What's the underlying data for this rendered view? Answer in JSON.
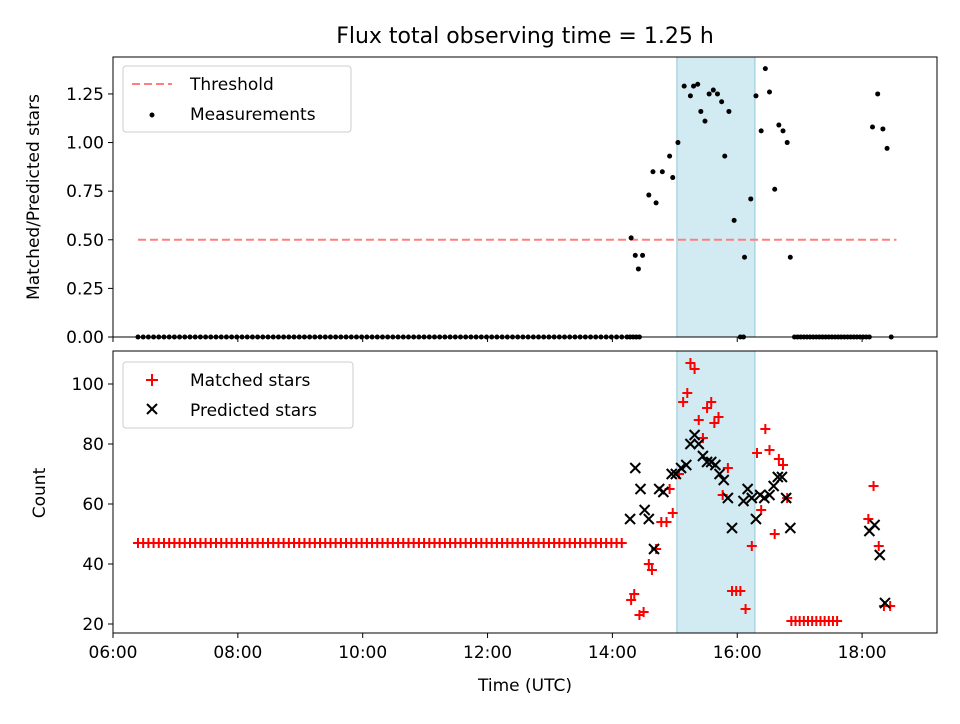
{
  "chart_data": [
    {
      "type": "scatter",
      "title": "Flux total observing time = 1.25 h",
      "ylabel": "Matched/Predicted stars",
      "xlabel": "",
      "xlim": [
        "06:00",
        "19:12"
      ],
      "ylim": [
        0,
        1.44
      ],
      "yticks": [
        "0.00",
        "0.25",
        "0.50",
        "0.75",
        "1.00",
        "1.25"
      ],
      "ytick_values": [
        0,
        0.25,
        0.5,
        0.75,
        1.0,
        1.25
      ],
      "shaded_span": {
        "start": "15:02",
        "end": "16:17",
        "color": "#add8e6"
      },
      "legend_position": "upper left",
      "threshold": {
        "name": "Threshold",
        "value": 0.5,
        "x_start": "06:24",
        "x_end": "18:33",
        "color": "#ff7f7f",
        "style": "dashed"
      },
      "series": [
        {
          "name": "Measurements",
          "color": "#000000",
          "marker": "dot",
          "zero_run": {
            "from": "06:24",
            "to": "14:15",
            "step_minutes": 5,
            "value": 0
          },
          "points": [
            [
              "14:17",
              0
            ],
            [
              "14:20",
              0
            ],
            [
              "14:23",
              0
            ],
            [
              "14:26",
              0
            ],
            [
              "14:18",
              0.51
            ],
            [
              "14:22",
              0.42
            ],
            [
              "14:25",
              0.35
            ],
            [
              "14:29",
              0.42
            ],
            [
              "14:35",
              0.73
            ],
            [
              "14:39",
              0.85
            ],
            [
              "14:42",
              0.69
            ],
            [
              "14:48",
              0.85
            ],
            [
              "14:55",
              0.93
            ],
            [
              "14:58",
              0.82
            ],
            [
              "15:03",
              1.0
            ],
            [
              "15:09",
              1.29
            ],
            [
              "15:15",
              1.24
            ],
            [
              "15:18",
              1.29
            ],
            [
              "15:22",
              1.3
            ],
            [
              "15:25",
              1.16
            ],
            [
              "15:29",
              1.11
            ],
            [
              "15:33",
              1.25
            ],
            [
              "15:37",
              1.27
            ],
            [
              "15:41",
              1.25
            ],
            [
              "15:45",
              1.21
            ],
            [
              "15:48",
              0.93
            ],
            [
              "15:52",
              1.16
            ],
            [
              "15:57",
              0.6
            ],
            [
              "16:03",
              0
            ],
            [
              "16:06",
              0
            ],
            [
              "16:07",
              0.41
            ],
            [
              "16:13",
              0.71
            ],
            [
              "16:18",
              1.24
            ],
            [
              "16:23",
              1.06
            ],
            [
              "16:27",
              1.38
            ],
            [
              "16:31",
              1.26
            ],
            [
              "16:36",
              0.76
            ],
            [
              "16:40",
              1.09
            ],
            [
              "16:44",
              1.06
            ],
            [
              "16:48",
              1.0
            ],
            [
              "16:51",
              0.41
            ],
            [
              "16:55",
              0
            ],
            [
              "16:58",
              0
            ],
            [
              "17:01",
              0
            ],
            [
              "17:04",
              0
            ],
            [
              "17:07",
              0
            ],
            [
              "17:10",
              0
            ],
            [
              "17:13",
              0
            ],
            [
              "17:16",
              0
            ],
            [
              "17:19",
              0
            ],
            [
              "17:22",
              0
            ],
            [
              "17:25",
              0
            ],
            [
              "17:28",
              0
            ],
            [
              "17:31",
              0
            ],
            [
              "17:34",
              0
            ],
            [
              "17:37",
              0
            ],
            [
              "17:40",
              0
            ],
            [
              "17:43",
              0
            ],
            [
              "17:46",
              0
            ],
            [
              "17:49",
              0
            ],
            [
              "17:52",
              0
            ],
            [
              "17:55",
              0
            ],
            [
              "17:58",
              0
            ],
            [
              "18:01",
              0
            ],
            [
              "18:04",
              0
            ],
            [
              "18:07",
              0
            ],
            [
              "18:10",
              1.08
            ],
            [
              "18:15",
              1.25
            ],
            [
              "18:20",
              1.07
            ],
            [
              "18:24",
              0.97
            ],
            [
              "18:28",
              0
            ]
          ]
        }
      ]
    },
    {
      "type": "scatter",
      "title": "",
      "xlabel": "Time (UTC)",
      "ylabel": "Count",
      "xlim": [
        "06:00",
        "19:12"
      ],
      "ylim": [
        17,
        111
      ],
      "xticks": [
        "06:00",
        "08:00",
        "10:00",
        "12:00",
        "14:00",
        "16:00",
        "18:00"
      ],
      "yticks": [
        "20",
        "40",
        "60",
        "80",
        "100"
      ],
      "ytick_values": [
        20,
        40,
        60,
        80,
        100
      ],
      "shaded_span": {
        "start": "15:02",
        "end": "16:17",
        "color": "#add8e6"
      },
      "legend_position": "upper left",
      "series": [
        {
          "name": "Matched stars",
          "color": "#ff0000",
          "marker": "plus",
          "constant_run": {
            "from": "06:24",
            "to": "14:10",
            "step_minutes": 5,
            "value": 47
          },
          "points": [
            [
              "14:18",
              28
            ],
            [
              "14:21",
              30
            ],
            [
              "14:26",
              23
            ],
            [
              "14:30",
              24
            ],
            [
              "14:35",
              40
            ],
            [
              "14:38",
              38
            ],
            [
              "14:42",
              45
            ],
            [
              "14:47",
              54
            ],
            [
              "14:52",
              54
            ],
            [
              "14:55",
              65
            ],
            [
              "14:58",
              57
            ],
            [
              "15:04",
              70
            ],
            [
              "15:08",
              94
            ],
            [
              "15:12",
              97
            ],
            [
              "15:15",
              107
            ],
            [
              "15:19",
              105
            ],
            [
              "15:23",
              88
            ],
            [
              "15:27",
              82
            ],
            [
              "15:31",
              92
            ],
            [
              "15:35",
              94
            ],
            [
              "15:38",
              87
            ],
            [
              "15:42",
              89
            ],
            [
              "15:46",
              63
            ],
            [
              "15:51",
              72
            ],
            [
              "15:55",
              31
            ],
            [
              "15:59",
              31
            ],
            [
              "16:03",
              31
            ],
            [
              "16:08",
              25
            ],
            [
              "16:14",
              46
            ],
            [
              "16:19",
              77
            ],
            [
              "16:23",
              58
            ],
            [
              "16:27",
              85
            ],
            [
              "16:31",
              78
            ],
            [
              "16:36",
              50
            ],
            [
              "16:40",
              75
            ],
            [
              "16:44",
              73
            ],
            [
              "16:48",
              62
            ],
            [
              "16:52",
              21
            ],
            [
              "16:56",
              21
            ],
            [
              "17:00",
              21
            ],
            [
              "17:04",
              21
            ],
            [
              "17:08",
              21
            ],
            [
              "17:12",
              21
            ],
            [
              "17:16",
              21
            ],
            [
              "17:20",
              21
            ],
            [
              "17:24",
              21
            ],
            [
              "17:28",
              21
            ],
            [
              "17:32",
              21
            ],
            [
              "17:36",
              21
            ],
            [
              "18:06",
              55
            ],
            [
              "18:11",
              66
            ],
            [
              "18:16",
              46
            ],
            [
              "18:21",
              26
            ],
            [
              "18:27",
              26
            ]
          ]
        },
        {
          "name": "Predicted stars",
          "color": "#000000",
          "marker": "x",
          "points": [
            [
              "14:17",
              55
            ],
            [
              "14:22",
              72
            ],
            [
              "14:27",
              65
            ],
            [
              "14:31",
              58
            ],
            [
              "14:35",
              55
            ],
            [
              "14:40",
              45
            ],
            [
              "14:45",
              65
            ],
            [
              "14:49",
              64
            ],
            [
              "14:57",
              70
            ],
            [
              "15:01",
              70
            ],
            [
              "15:06",
              72
            ],
            [
              "15:11",
              73
            ],
            [
              "15:15",
              80
            ],
            [
              "15:19",
              83
            ],
            [
              "15:23",
              80
            ],
            [
              "15:27",
              76
            ],
            [
              "15:31",
              74
            ],
            [
              "15:35",
              74
            ],
            [
              "15:39",
              73
            ],
            [
              "15:43",
              70
            ],
            [
              "15:47",
              68
            ],
            [
              "15:51",
              62
            ],
            [
              "15:55",
              52
            ],
            [
              "16:06",
              61
            ],
            [
              "16:10",
              65
            ],
            [
              "16:14",
              62
            ],
            [
              "16:18",
              55
            ],
            [
              "16:22",
              63
            ],
            [
              "16:26",
              62
            ],
            [
              "16:31",
              63
            ],
            [
              "16:35",
              66
            ],
            [
              "16:39",
              69
            ],
            [
              "16:43",
              69
            ],
            [
              "16:47",
              62
            ],
            [
              "16:51",
              52
            ],
            [
              "18:07",
              51
            ],
            [
              "18:12",
              53
            ],
            [
              "18:17",
              43
            ],
            [
              "18:22",
              27
            ]
          ]
        }
      ]
    }
  ]
}
